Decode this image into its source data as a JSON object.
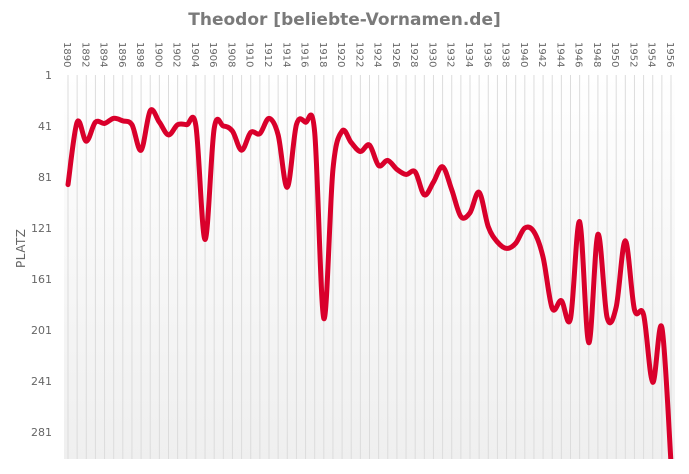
{
  "chart_data": {
    "type": "line",
    "title": "Theodor [beliebte-Vornamen.de]",
    "xlabel": "",
    "ylabel": "PLATZ",
    "y_inverted": true,
    "ylim": [
      1,
      300
    ],
    "yticks": [
      1,
      41,
      81,
      121,
      161,
      201,
      241,
      281
    ],
    "xticks": [
      1890,
      1892,
      1894,
      1896,
      1898,
      1900,
      1902,
      1904,
      1906,
      1908,
      1910,
      1912,
      1914,
      1916,
      1918,
      1920,
      1922,
      1924,
      1926,
      1928,
      1930,
      1932,
      1934,
      1936,
      1938,
      1940,
      1942,
      1944,
      1946,
      1948,
      1950,
      1952,
      1954,
      1956
    ],
    "grid": "vertical-per-year",
    "legend": null,
    "line_color": "#d9002b",
    "x": [
      1890,
      1891,
      1892,
      1893,
      1894,
      1895,
      1896,
      1897,
      1898,
      1899,
      1900,
      1901,
      1902,
      1903,
      1904,
      1905,
      1906,
      1907,
      1908,
      1909,
      1910,
      1911,
      1912,
      1913,
      1914,
      1915,
      1916,
      1917,
      1918,
      1919,
      1920,
      1921,
      1922,
      1923,
      1924,
      1925,
      1926,
      1927,
      1928,
      1929,
      1930,
      1931,
      1932,
      1933,
      1934,
      1935,
      1936,
      1937,
      1938,
      1939,
      1940,
      1941,
      1942,
      1943,
      1944,
      1945,
      1946,
      1947,
      1948,
      1949,
      1950,
      1951,
      1952,
      1953,
      1954,
      1955,
      1956
    ],
    "series": [
      {
        "name": "Theodor",
        "values": [
          87,
          38,
          53,
          38,
          39,
          35,
          37,
          40,
          60,
          29,
          38,
          48,
          40,
          40,
          41,
          130,
          43,
          41,
          45,
          60,
          46,
          47,
          35,
          48,
          89,
          40,
          38,
          46,
          192,
          75,
          45,
          54,
          61,
          56,
          72,
          68,
          75,
          79,
          77,
          95,
          85,
          73,
          91,
          112,
          109,
          93,
          120,
          132,
          137,
          133,
          121,
          124,
          144,
          184,
          178,
          192,
          116,
          211,
          126,
          191,
          183,
          131,
          185,
          189,
          242,
          199,
          305
        ]
      }
    ]
  },
  "title": "Theodor [beliebte-Vornamen.de]",
  "ylabel": "PLATZ"
}
